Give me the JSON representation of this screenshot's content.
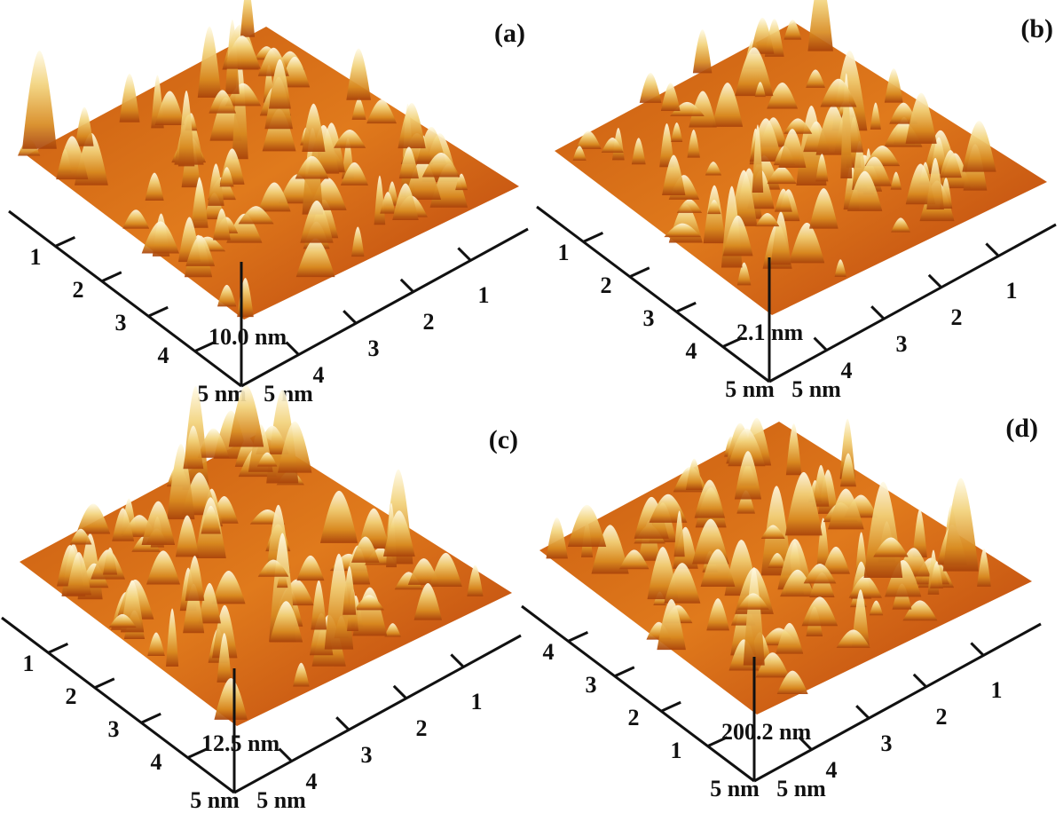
{
  "panels": [
    {
      "label": "(a)",
      "left_ticks": [
        "1",
        "2",
        "3",
        "4"
      ],
      "left_unit": "5 nm",
      "right_ticks": [
        "1",
        "2",
        "3",
        "4"
      ],
      "right_unit": "5 nm",
      "height": "10.0 nm"
    },
    {
      "label": "(b)",
      "left_ticks": [
        "1",
        "2",
        "3",
        "4"
      ],
      "left_unit": "5 nm",
      "right_ticks": [
        "1",
        "2",
        "3",
        "4"
      ],
      "right_unit": "5 nm",
      "height": "2.1 nm"
    },
    {
      "label": "(c)",
      "left_ticks": [
        "1",
        "2",
        "3",
        "4"
      ],
      "left_unit": "5 nm",
      "right_ticks": [
        "1",
        "2",
        "3",
        "4"
      ],
      "right_unit": "5 nm",
      "height": "12.5 nm"
    },
    {
      "label": "(d)",
      "left_ticks": [
        "4",
        "3",
        "2",
        "1"
      ],
      "left_unit": "5 nm",
      "right_ticks": [
        "1",
        "2",
        "3",
        "4"
      ],
      "right_unit": "5 nm",
      "height": "200.2 nm"
    }
  ]
}
